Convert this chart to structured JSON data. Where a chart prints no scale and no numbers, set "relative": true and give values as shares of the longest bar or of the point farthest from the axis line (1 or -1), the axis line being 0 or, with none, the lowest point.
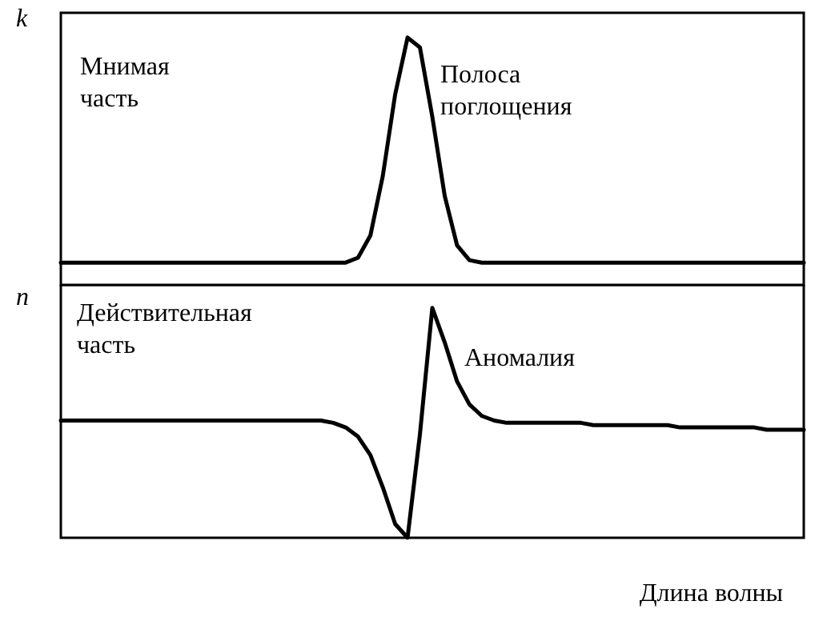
{
  "chart_data": [
    {
      "type": "line",
      "relative": true,
      "ylabel": "k",
      "color": "#000000",
      "annotations": [
        "Мнимая\nчасть",
        "Полоса\nпоглощения"
      ],
      "categories": [
        null,
        null,
        null,
        null,
        null,
        null,
        null,
        null,
        null,
        null,
        null,
        null,
        null,
        null,
        null,
        null,
        null,
        null,
        null,
        null,
        null,
        null,
        null,
        null,
        null,
        null,
        null,
        null,
        null,
        null,
        null,
        null,
        null,
        null,
        null,
        null,
        null,
        null,
        null,
        null,
        null,
        null,
        null,
        null,
        null,
        null,
        null,
        null,
        null,
        null,
        null,
        null,
        null,
        null,
        null,
        null,
        null,
        null,
        null,
        null,
        null
      ],
      "values": [
        0.09,
        0.09,
        0.09,
        0.09,
        0.09,
        0.09,
        0.09,
        0.09,
        0.09,
        0.09,
        0.09,
        0.09,
        0.09,
        0.09,
        0.09,
        0.09,
        0.09,
        0.09,
        0.09,
        0.09,
        0.09,
        0.09,
        0.09,
        0.09,
        0.11,
        0.2,
        0.44,
        0.77,
        1,
        0.96,
        0.68,
        0.36,
        0.16,
        0.1,
        0.09,
        0.09,
        0.09,
        0.09,
        0.09,
        0.09,
        0.09,
        0.09,
        0.09,
        0.09,
        0.09,
        0.09,
        0.09,
        0.09,
        0.09,
        0.09,
        0.09,
        0.09,
        0.09,
        0.09,
        0.09,
        0.09,
        0.09,
        0.09,
        0.09,
        0.09,
        0.09
      ]
    },
    {
      "type": "line",
      "relative": true,
      "ylabel": "n",
      "xlabel": "Длина волны",
      "color": "#000000",
      "annotations": [
        "Действительная\nчасть",
        "Аномалия"
      ],
      "categories": [
        null,
        null,
        null,
        null,
        null,
        null,
        null,
        null,
        null,
        null,
        null,
        null,
        null,
        null,
        null,
        null,
        null,
        null,
        null,
        null,
        null,
        null,
        null,
        null,
        null,
        null,
        null,
        null,
        null,
        null,
        null,
        null,
        null,
        null,
        null,
        null,
        null,
        null,
        null,
        null,
        null,
        null,
        null,
        null,
        null,
        null,
        null,
        null,
        null,
        null,
        null,
        null,
        null,
        null,
        null,
        null,
        null,
        null,
        null,
        null,
        null
      ],
      "values": [
        0.51,
        0.51,
        0.51,
        0.51,
        0.51,
        0.51,
        0.51,
        0.51,
        0.51,
        0.51,
        0.51,
        0.51,
        0.51,
        0.51,
        0.51,
        0.51,
        0.51,
        0.51,
        0.51,
        0.51,
        0.51,
        0.51,
        0.5,
        0.48,
        0.44,
        0.36,
        0.22,
        0.06,
        0,
        0.45,
        1,
        0.85,
        0.68,
        0.58,
        0.53,
        0.51,
        0.5,
        0.5,
        0.5,
        0.5,
        0.5,
        0.5,
        0.5,
        0.49,
        0.49,
        0.49,
        0.49,
        0.49,
        0.49,
        0.49,
        0.48,
        0.48,
        0.48,
        0.48,
        0.48,
        0.48,
        0.48,
        0.47,
        0.47,
        0.47,
        0.47
      ]
    }
  ]
}
